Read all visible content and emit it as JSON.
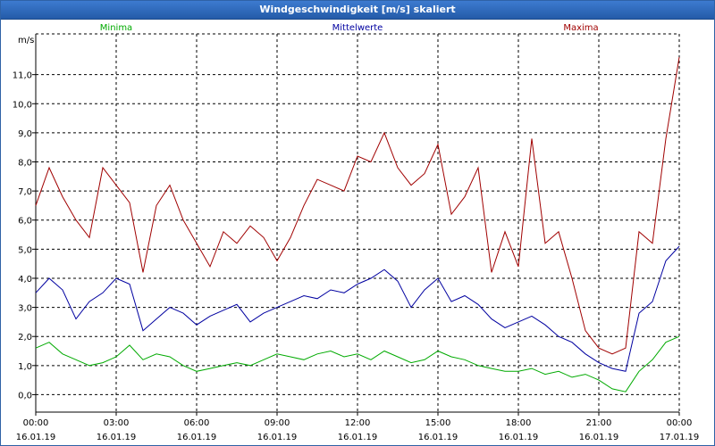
{
  "window": {
    "title": "Windgeschwindigkeit [m/s] skaliert"
  },
  "chart_data": {
    "type": "line",
    "title": "Windgeschwindigkeit [m/s] skaliert",
    "ylabel": "m/s",
    "xlabel": "",
    "ylim": [
      -0.6,
      12.4
    ],
    "xlim": [
      0,
      24
    ],
    "grid": true,
    "legend": "top",
    "yticks": [
      {
        "value": 0,
        "label": "0,0"
      },
      {
        "value": 1,
        "label": "1,0"
      },
      {
        "value": 2,
        "label": "2,0"
      },
      {
        "value": 3,
        "label": "3,0"
      },
      {
        "value": 4,
        "label": "4,0"
      },
      {
        "value": 5,
        "label": "5,0"
      },
      {
        "value": 6,
        "label": "6,0"
      },
      {
        "value": 7,
        "label": "7,0"
      },
      {
        "value": 8,
        "label": "8,0"
      },
      {
        "value": 9,
        "label": "9,0"
      },
      {
        "value": 10,
        "label": "10,0"
      },
      {
        "value": 11,
        "label": "11,0"
      }
    ],
    "xticks": [
      {
        "value": 0,
        "time": "00:00",
        "date": "16.01.19"
      },
      {
        "value": 3,
        "time": "03:00",
        "date": "16.01.19"
      },
      {
        "value": 6,
        "time": "06:00",
        "date": "16.01.19"
      },
      {
        "value": 9,
        "time": "09:00",
        "date": "16.01.19"
      },
      {
        "value": 12,
        "time": "12:00",
        "date": "16.01.19"
      },
      {
        "value": 15,
        "time": "15:00",
        "date": "16.01.19"
      },
      {
        "value": 18,
        "time": "18:00",
        "date": "16.01.19"
      },
      {
        "value": 21,
        "time": "21:00",
        "date": "16.01.19"
      },
      {
        "value": 24,
        "time": "00:00",
        "date": "17.01.19"
      }
    ],
    "series": [
      {
        "name": "Minima",
        "color": "#00aa00",
        "x": [
          0,
          0.5,
          1,
          1.5,
          2,
          2.5,
          3,
          3.5,
          4,
          4.5,
          5,
          5.5,
          6,
          6.5,
          7,
          7.5,
          8,
          8.5,
          9,
          9.5,
          10,
          10.5,
          11,
          11.5,
          12,
          12.5,
          13,
          13.5,
          14,
          14.5,
          15,
          15.5,
          16,
          16.5,
          17,
          17.5,
          18,
          18.5,
          19,
          19.5,
          20,
          20.5,
          21,
          21.5,
          22,
          22.5,
          23,
          23.5,
          24
        ],
        "values": [
          1.6,
          1.8,
          1.4,
          1.2,
          1.0,
          1.1,
          1.3,
          1.7,
          1.2,
          1.4,
          1.3,
          1.0,
          0.8,
          0.9,
          1.0,
          1.1,
          1.0,
          1.2,
          1.4,
          1.3,
          1.2,
          1.4,
          1.5,
          1.3,
          1.4,
          1.2,
          1.5,
          1.3,
          1.1,
          1.2,
          1.5,
          1.3,
          1.2,
          1.0,
          0.9,
          0.8,
          0.8,
          0.9,
          0.7,
          0.8,
          0.6,
          0.7,
          0.5,
          0.2,
          0.1,
          0.8,
          1.2,
          1.8,
          2.0
        ]
      },
      {
        "name": "Mittelwerte",
        "color": "#0000a0",
        "x": [
          0,
          0.5,
          1,
          1.5,
          2,
          2.5,
          3,
          3.5,
          4,
          4.5,
          5,
          5.5,
          6,
          6.5,
          7,
          7.5,
          8,
          8.5,
          9,
          9.5,
          10,
          10.5,
          11,
          11.5,
          12,
          12.5,
          13,
          13.5,
          14,
          14.5,
          15,
          15.5,
          16,
          16.5,
          17,
          17.5,
          18,
          18.5,
          19,
          19.5,
          20,
          20.5,
          21,
          21.5,
          22,
          22.5,
          23,
          23.5,
          24
        ],
        "values": [
          3.5,
          4.0,
          3.6,
          2.6,
          3.2,
          3.5,
          4.0,
          3.8,
          2.2,
          2.6,
          3.0,
          2.8,
          2.4,
          2.7,
          2.9,
          3.1,
          2.5,
          2.8,
          3.0,
          3.2,
          3.4,
          3.3,
          3.6,
          3.5,
          3.8,
          4.0,
          4.3,
          3.9,
          3.0,
          3.6,
          4.0,
          3.2,
          3.4,
          3.1,
          2.6,
          2.3,
          2.5,
          2.7,
          2.4,
          2.0,
          1.8,
          1.4,
          1.1,
          0.9,
          0.8,
          2.8,
          3.2,
          4.6,
          5.1
        ]
      },
      {
        "name": "Maxima",
        "color": "#a00000",
        "x": [
          0,
          0.5,
          1,
          1.5,
          2,
          2.5,
          3,
          3.5,
          4,
          4.5,
          5,
          5.5,
          6,
          6.5,
          7,
          7.5,
          8,
          8.5,
          9,
          9.5,
          10,
          10.5,
          11,
          11.5,
          12,
          12.5,
          13,
          13.5,
          14,
          14.5,
          15,
          15.5,
          16,
          16.5,
          17,
          17.5,
          18,
          18.5,
          19,
          19.5,
          20,
          20.5,
          21,
          21.5,
          22,
          22.5,
          23,
          23.5,
          24
        ],
        "values": [
          6.5,
          7.8,
          6.8,
          6.0,
          5.4,
          7.8,
          7.2,
          6.6,
          4.2,
          6.5,
          7.2,
          6.0,
          5.2,
          4.4,
          5.6,
          5.2,
          5.8,
          5.4,
          4.6,
          5.4,
          6.5,
          7.4,
          7.2,
          7.0,
          8.2,
          8.0,
          9.0,
          7.8,
          7.2,
          7.6,
          8.6,
          6.2,
          6.8,
          7.8,
          4.2,
          5.6,
          4.4,
          8.8,
          5.2,
          5.6,
          4.0,
          2.2,
          1.6,
          1.4,
          1.6,
          5.6,
          5.2,
          8.8,
          11.6
        ]
      }
    ]
  }
}
